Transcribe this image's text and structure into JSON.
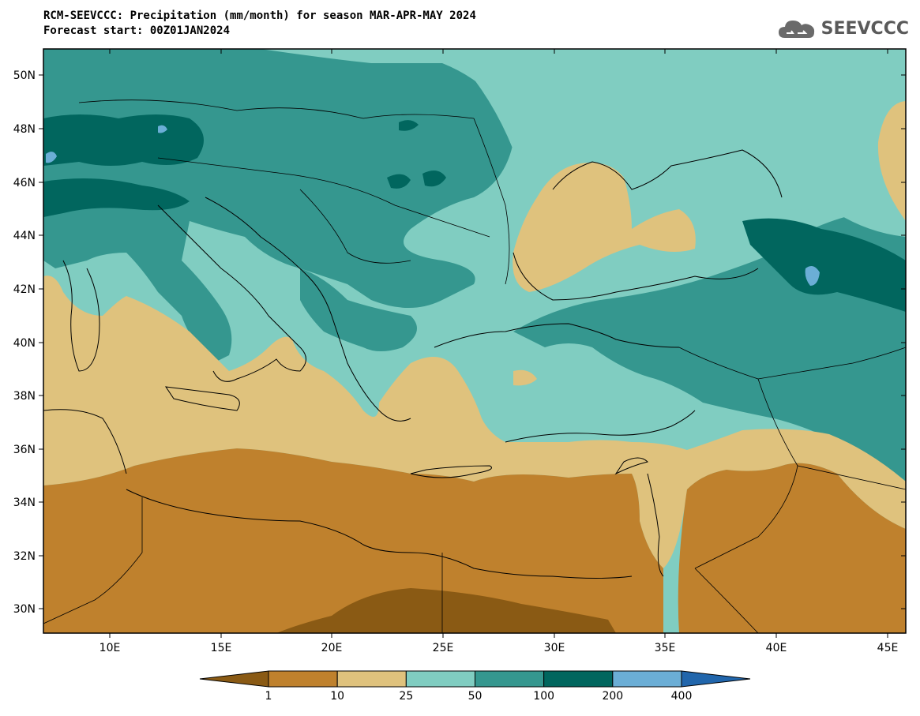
{
  "title": {
    "line1": "RCM-SEEVCCC: Precipitation (mm/month) for season MAR-APR-MAY 2024",
    "line2": "Forecast start: 00Z01JAN2024"
  },
  "logo": {
    "text": "SEEVCCC",
    "icon": "cloud-icon"
  },
  "map": {
    "lat_labels": [
      "50N",
      "48N",
      "46N",
      "44N",
      "42N",
      "40N",
      "38N",
      "36N",
      "34N",
      "32N",
      "30N"
    ],
    "lon_labels": [
      "10E",
      "15E",
      "20E",
      "25E",
      "30E",
      "35E",
      "40E",
      "45E"
    ],
    "palette": {
      "below_1": "#8a5a14",
      "1_10": "#bf812d",
      "10_25": "#dfc27d",
      "25_50": "#80cdc1",
      "50_100": "#35978f",
      "100_200": "#01665e",
      "200_400": "#6baed6",
      "above_400": "#2166ac"
    }
  },
  "colorbar": {
    "labels": [
      "1",
      "10",
      "25",
      "50",
      "100",
      "200",
      "400"
    ],
    "colors": [
      "#8a5a14",
      "#bf812d",
      "#dfc27d",
      "#80cdc1",
      "#35978f",
      "#01665e",
      "#6baed6",
      "#2166ac"
    ]
  }
}
